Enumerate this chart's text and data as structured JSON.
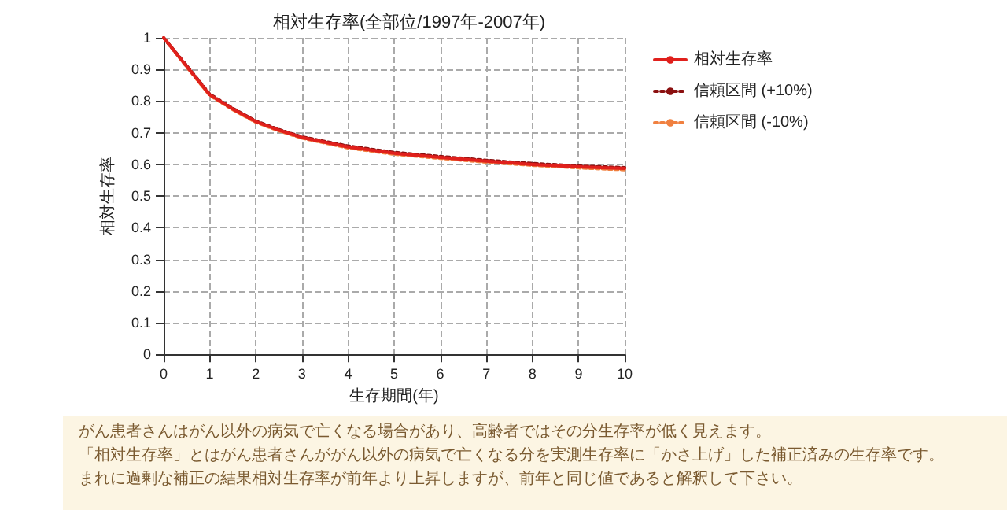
{
  "chart_data": {
    "type": "line",
    "title": "相対生存率(全部位/1997年-2007年)",
    "xlabel": "生存期間(年)",
    "ylabel": "相対生存率",
    "x": [
      0,
      0.5,
      1,
      1.5,
      2,
      2.5,
      3,
      4,
      5,
      6,
      7,
      8,
      9,
      10
    ],
    "series": [
      {
        "name": "相対生存率",
        "color": "#e0201c",
        "line_style": "solid",
        "values": [
          1,
          0.91,
          0.82,
          0.775,
          0.735,
          0.708,
          0.685,
          0.655,
          0.635,
          0.622,
          0.61,
          0.6,
          0.592,
          0.587
        ]
      },
      {
        "name": "信頼区間 (+10%)",
        "color": "#8b1010",
        "line_style": "dotted",
        "values": [
          1,
          0.912,
          0.822,
          0.777,
          0.737,
          0.71,
          0.687,
          0.658,
          0.638,
          0.625,
          0.613,
          0.603,
          0.595,
          0.59
        ]
      },
      {
        "name": "信頼区間 (-10%)",
        "color": "#f08040",
        "line_style": "dotted",
        "values": [
          1,
          0.908,
          0.818,
          0.773,
          0.733,
          0.706,
          0.683,
          0.652,
          0.632,
          0.619,
          0.607,
          0.597,
          0.589,
          0.583
        ]
      }
    ],
    "xlim": [
      0,
      10
    ],
    "xticks": [
      0,
      1,
      2,
      3,
      4,
      5,
      6,
      7,
      8,
      9,
      10
    ],
    "ylim": [
      0,
      1
    ],
    "yticks": [
      0,
      0.1,
      0.2,
      0.3,
      0.4,
      0.5,
      0.6,
      0.7,
      0.8,
      0.9,
      1
    ],
    "grid": true,
    "legend": "right",
    "marker": "none",
    "annotations": [
      "がん患者さんはがん以外の病気で亡くなる場合があり、高齢者ではその分生存率が低く見えます。",
      "「相対生存率」とはがん患者さんががん以外の病気で亡くなる分を実測生存率に「かさ上げ」した補正済みの生存率です。",
      "まれに過剰な補正の結果相対生存率が前年より上昇しますが、前年と同じ値であると解釈して下さい。"
    ]
  }
}
